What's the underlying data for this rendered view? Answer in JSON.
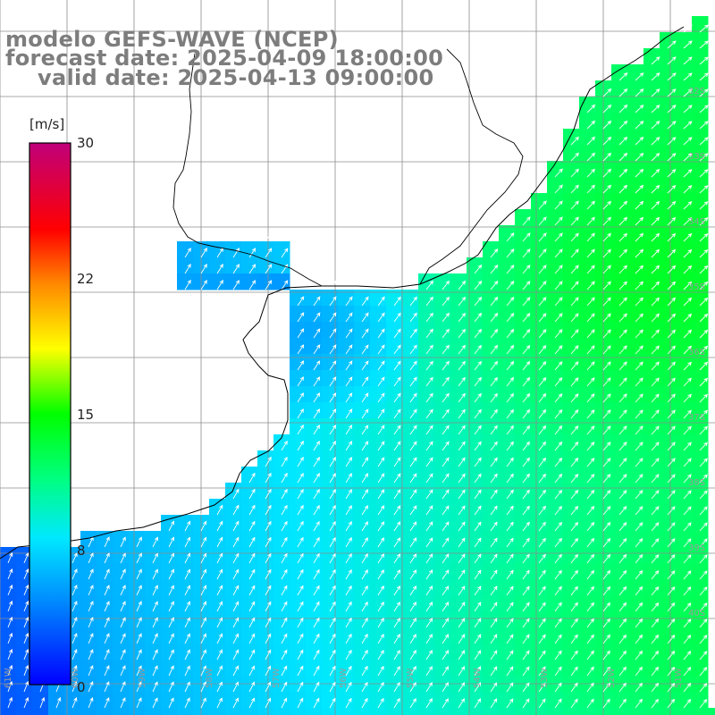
{
  "header": {
    "model_line": "modelo GEFS-WAVE (NCEP)",
    "forecast_line": "forecast date: 2025-04-09 18:00:00",
    "valid_line": "valid date: 2025-04-13 09:00:00"
  },
  "colorbar": {
    "unit": "[m/s]",
    "ticks": [
      "30",
      "22",
      "15",
      "8",
      "0"
    ],
    "tick_values": [
      30,
      22,
      15,
      8,
      0
    ],
    "range": [
      0,
      30
    ],
    "colors": [
      "#0000ff",
      "#00a0ff",
      "#00e8ff",
      "#00ff00",
      "#ffff00",
      "#ff9900",
      "#ff0000",
      "#c8006e"
    ]
  },
  "map": {
    "lat_labels": [
      "32S",
      "33S",
      "34S",
      "35S",
      "36S",
      "37S",
      "38S",
      "39S",
      "40S"
    ],
    "lon_labels": [
      "61W",
      "60W",
      "59W",
      "58W",
      "57W",
      "56W",
      "55W",
      "54W",
      "53W",
      "52W",
      "51W"
    ],
    "land_color": "#ffffff",
    "grid_color": "#9a9a9a",
    "arrow_color": "#ffffff",
    "coast_color": "#000000"
  }
}
